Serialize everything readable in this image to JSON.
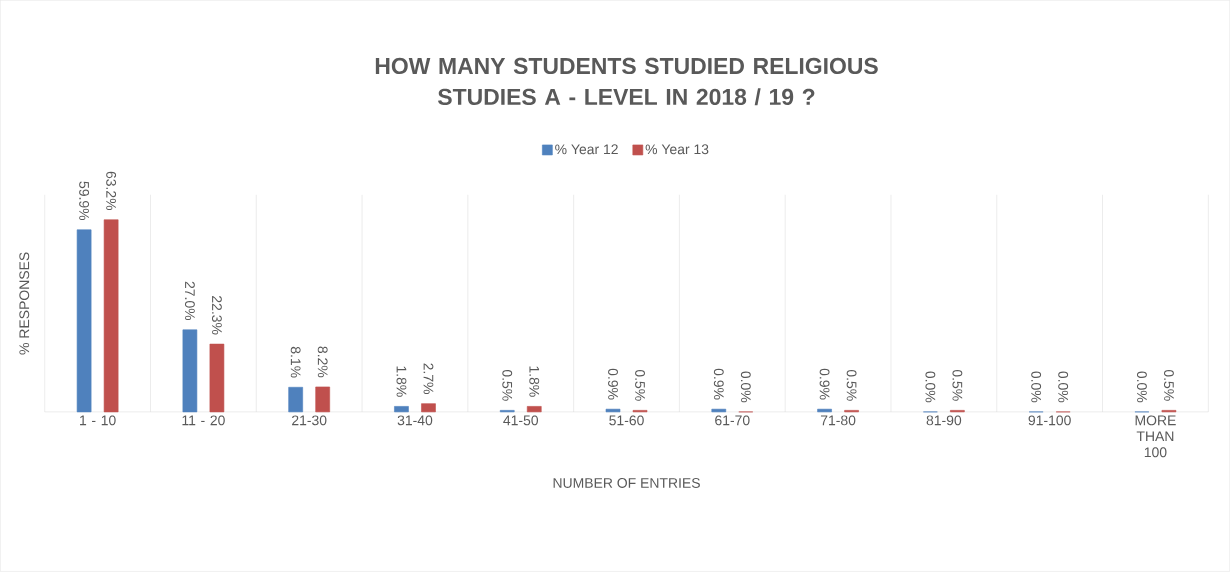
{
  "chart_data": {
    "type": "bar",
    "title": "HOW MANY STUDENTS STUDIED RELIGIOUS STUDIES  A - LEVEL IN 2018 / 19 ?",
    "xlabel": "NUMBER OF ENTRIES",
    "ylabel": "% RESPONSES",
    "categories": [
      "1  -  10",
      "11  -  20",
      "21-30",
      "31-40",
      "41-50",
      "51-60",
      "61-70",
      "71-80",
      "81-90",
      "91-100",
      "MORE THAN 100"
    ],
    "series": [
      {
        "name": "% Year 12",
        "color": "#4f81bd",
        "values": [
          59.9,
          27.0,
          8.1,
          1.8,
          0.5,
          0.9,
          0.9,
          0.9,
          0.0,
          0.0,
          0.0
        ],
        "value_labels": [
          "59.9%",
          "27.0%",
          "8.1%",
          "1.8%",
          "0.5%",
          "0.9%",
          "0.9%",
          "0.9%",
          "0.0%",
          "0.0%",
          "0.0%"
        ]
      },
      {
        "name": "% Year 13",
        "color": "#c0504d",
        "values": [
          63.2,
          22.3,
          8.2,
          2.7,
          1.8,
          0.5,
          0.0,
          0.5,
          0.5,
          0.0,
          0.5
        ],
        "value_labels": [
          "63.2%",
          "22.3%",
          "8.2%",
          "2.7%",
          "1.8%",
          "0.5%",
          "0.0%",
          "0.5%",
          "0.5%",
          "0.0%",
          "0.5%"
        ]
      }
    ],
    "legend": "top",
    "grid": "x"
  }
}
